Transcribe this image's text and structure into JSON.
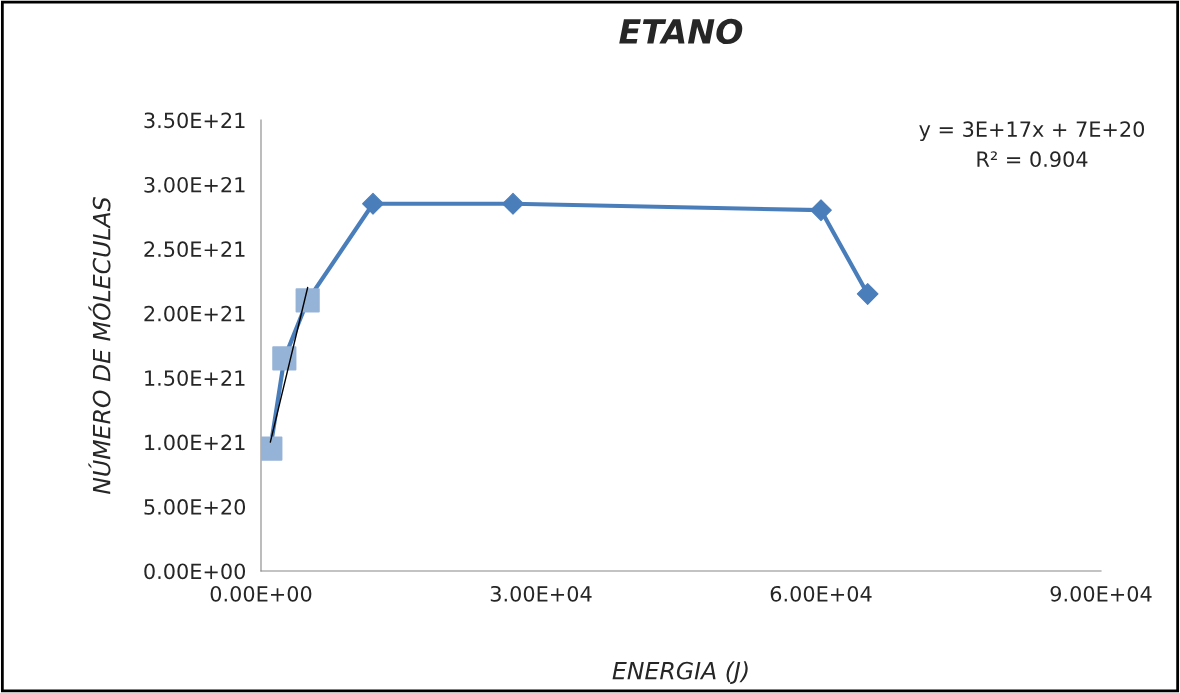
{
  "chart_data": {
    "type": "line",
    "title": "ETANO",
    "xlabel": "ENERGIA (J)",
    "ylabel": "NÚMERO DE MÓLECULAS",
    "xlim": [
      0,
      90000
    ],
    "ylim": [
      0,
      3.5e+21
    ],
    "xticks": [
      {
        "value": 0,
        "label": "0.00E+00"
      },
      {
        "value": 30000,
        "label": "3.00E+04"
      },
      {
        "value": 60000,
        "label": "6.00E+04"
      },
      {
        "value": 90000,
        "label": "9.00E+04"
      }
    ],
    "yticks": [
      {
        "value": 0,
        "label": "0.00E+00"
      },
      {
        "value": 5e+20,
        "label": "5.00E+20"
      },
      {
        "value": 1e+21,
        "label": "1.00E+21"
      },
      {
        "value": 1.5e+21,
        "label": "1.50E+21"
      },
      {
        "value": 2e+21,
        "label": "2.00E+21"
      },
      {
        "value": 2.5e+21,
        "label": "2.50E+21"
      },
      {
        "value": 3e+21,
        "label": "3.00E+21"
      },
      {
        "value": 3.5e+21,
        "label": "3.50E+21"
      }
    ],
    "grid": false,
    "legend": false,
    "series": [
      {
        "color": "#4a7ebb",
        "marker": "diamond",
        "x": [
          1000,
          2500,
          5000,
          12000,
          27000,
          60000,
          65000
        ],
        "values": [
          9.5e+20,
          1.65e+21,
          2.1e+21,
          2.85e+21,
          2.85e+21,
          2.8e+21,
          2.15e+21
        ]
      },
      {
        "type": "scatter",
        "color": "#95b3d7",
        "marker": "square",
        "x": [
          1000,
          2500,
          5000
        ],
        "values": [
          9.5e+20,
          1.65e+21,
          2.1e+21
        ]
      },
      {
        "color": "#000000",
        "marker": "none",
        "x": [
          1000,
          5000
        ],
        "values": [
          1e+21,
          2.2e+21
        ]
      }
    ],
    "annotations": [
      "y = 3E+17x + 7E+20",
      "R² = 0.904"
    ]
  }
}
